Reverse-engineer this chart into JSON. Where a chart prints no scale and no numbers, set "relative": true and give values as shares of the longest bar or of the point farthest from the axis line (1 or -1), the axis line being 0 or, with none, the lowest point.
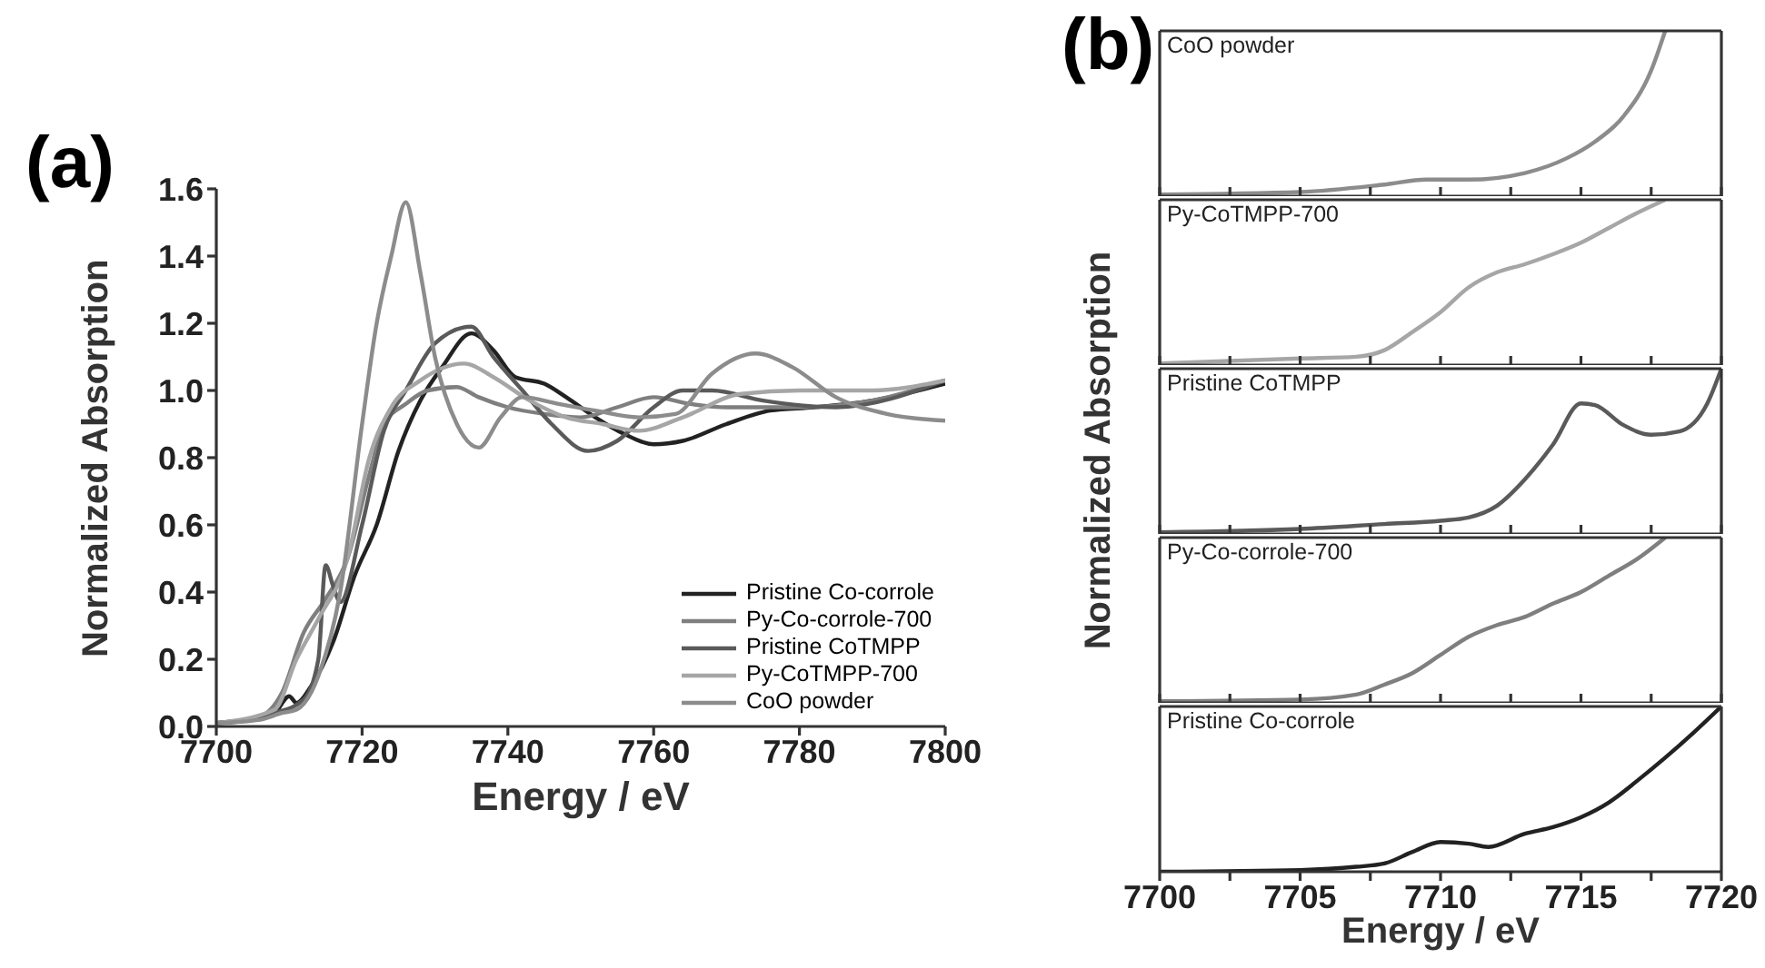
{
  "chart_data": [
    {
      "type": "line",
      "title": "(a)",
      "xlabel": "Energy / eV",
      "ylabel": "Normalized Absorption",
      "xlim": [
        7700,
        7800
      ],
      "xticks": [
        7700,
        7720,
        7740,
        7760,
        7780,
        7800
      ],
      "ylim": [
        0,
        1.6
      ],
      "yticks": [
        {
          "value": 0,
          "label": "0.0"
        },
        0.2,
        0.4,
        0.6,
        0.8,
        {
          "value": 1,
          "label": "1.0"
        },
        1.2,
        1.4,
        1.6
      ],
      "legend": "bottom right",
      "marker": "none",
      "line_style": "solid",
      "series": [
        {
          "name": "Pristine Co-corrole",
          "color": "#222222",
          "x": [
            7700,
            7705,
            7708,
            7710,
            7711,
            7713,
            7716,
            7719,
            7722,
            7725,
            7728,
            7731,
            7735,
            7738,
            7741,
            7745,
            7748,
            7752,
            7756,
            7760,
            7764,
            7770,
            7776,
            7782,
            7790,
            7800
          ],
          "values": [
            0.01,
            0.02,
            0.04,
            0.09,
            0.07,
            0.12,
            0.25,
            0.45,
            0.6,
            0.82,
            0.97,
            1.07,
            1.17,
            1.12,
            1.04,
            1.02,
            0.98,
            0.92,
            0.87,
            0.84,
            0.85,
            0.9,
            0.94,
            0.95,
            0.97,
            1.02
          ]
        },
        {
          "name": "Py-Co-corrole-700",
          "color": "#7f7f7f",
          "x": [
            7700,
            7706,
            7709,
            7712,
            7715,
            7718,
            7721,
            7723,
            7726,
            7729,
            7733,
            7736,
            7740,
            7745,
            7750,
            7755,
            7760,
            7765,
            7770,
            7780,
            7790,
            7800
          ],
          "values": [
            0.01,
            0.03,
            0.1,
            0.28,
            0.38,
            0.5,
            0.75,
            0.9,
            0.96,
            1.0,
            1.01,
            0.98,
            0.95,
            0.93,
            0.92,
            0.95,
            0.98,
            0.96,
            0.95,
            0.95,
            0.97,
            1.03
          ]
        },
        {
          "name": "Pristine CoTMPP",
          "color": "#5a5a5a",
          "x": [
            7700,
            7708,
            7712,
            7714,
            7715,
            7716,
            7717,
            7720,
            7723,
            7726,
            7730,
            7735,
            7738,
            7742,
            7746,
            7751,
            7755,
            7760,
            7764,
            7768,
            7775,
            7785,
            7800
          ],
          "values": [
            0.01,
            0.04,
            0.08,
            0.2,
            0.48,
            0.42,
            0.37,
            0.6,
            0.88,
            1.0,
            1.14,
            1.19,
            1.1,
            1.0,
            0.9,
            0.82,
            0.85,
            0.95,
            1.0,
            1.0,
            0.97,
            0.95,
            1.03
          ]
        },
        {
          "name": "Py-CoTMPP-700",
          "color": "#a6a6a6",
          "x": [
            7700,
            7708,
            7711,
            7714,
            7718,
            7721,
            7724,
            7728,
            7734,
            7738,
            7743,
            7748,
            7753,
            7758,
            7764,
            7772,
            7780,
            7790,
            7800
          ],
          "values": [
            0.01,
            0.05,
            0.2,
            0.32,
            0.5,
            0.8,
            0.95,
            1.03,
            1.08,
            1.04,
            0.97,
            0.92,
            0.9,
            0.88,
            0.92,
            0.99,
            1.0,
            1.0,
            1.03
          ]
        },
        {
          "name": "CoO powder",
          "color": "#8c8c8c",
          "x": [
            7700,
            7706,
            7709,
            7711,
            7714,
            7717,
            7720,
            7722,
            7724,
            7726,
            7728,
            7730,
            7733,
            7736,
            7739,
            7742,
            7747,
            7752,
            7758,
            7763,
            7768,
            7774,
            7779,
            7785,
            7792,
            7800
          ],
          "values": [
            0.01,
            0.02,
            0.04,
            0.05,
            0.15,
            0.4,
            0.9,
            1.2,
            1.4,
            1.56,
            1.35,
            1.1,
            0.9,
            0.83,
            0.92,
            0.98,
            0.96,
            0.94,
            0.92,
            0.93,
            1.05,
            1.11,
            1.07,
            0.98,
            0.93,
            0.91
          ]
        }
      ]
    },
    {
      "type": "line",
      "title": "(b)",
      "relative": true,
      "tick_labels": false,
      "legend": false,
      "marker": "none",
      "xlim": [
        7700,
        7720
      ],
      "xticks": [
        7700,
        {
          "value": 7702.5,
          "label": null
        },
        7705,
        {
          "value": 7707.5,
          "label": null
        },
        7710,
        {
          "value": 7712.5,
          "label": null
        },
        7715,
        {
          "value": 7717.5,
          "label": null
        },
        7720
      ],
      "series": [
        {
          "name": "CoO powder",
          "color": "#8c8c8c",
          "x": [
            7700,
            7705,
            7708,
            7709.5,
            7711,
            7713,
            7714.5,
            7715.5,
            7716.5,
            7717.5,
            7718
          ],
          "values": [
            0.01,
            0.025,
            0.07,
            0.1,
            0.1,
            0.14,
            0.23,
            0.33,
            0.48,
            0.76,
            1
          ]
        }
      ]
    },
    {
      "type": "line",
      "relative": true,
      "tick_labels": false,
      "legend": false,
      "marker": "none",
      "xlim": [
        7700,
        7720
      ],
      "xticks": [
        7700,
        {
          "value": 7702.5,
          "label": null
        },
        7705,
        {
          "value": 7707.5,
          "label": null
        },
        7710,
        {
          "value": 7712.5,
          "label": null
        },
        7715,
        {
          "value": 7717.5,
          "label": null
        },
        7720
      ],
      "series": [
        {
          "name": "Py-CoTMPP-700",
          "color": "#a6a6a6",
          "x": [
            7700,
            7705,
            7707,
            7708,
            7709,
            7710,
            7711,
            7712,
            7713,
            7714,
            7715,
            7716,
            7717,
            7718
          ],
          "values": [
            0.01,
            0.04,
            0.05,
            0.09,
            0.2,
            0.32,
            0.47,
            0.56,
            0.61,
            0.67,
            0.74,
            0.83,
            0.92,
            1
          ]
        }
      ]
    },
    {
      "type": "line",
      "relative": true,
      "tick_labels": false,
      "legend": false,
      "marker": "none",
      "ylabel": "Normalized Absorption",
      "xlim": [
        7700,
        7720
      ],
      "xticks": [
        7700,
        {
          "value": 7702.5,
          "label": null
        },
        7705,
        {
          "value": 7707.5,
          "label": null
        },
        7710,
        {
          "value": 7712.5,
          "label": null
        },
        7715,
        {
          "value": 7717.5,
          "label": null
        },
        7720
      ],
      "series": [
        {
          "name": "Pristine CoTMPP",
          "color": "#5a5a5a",
          "x": [
            7700,
            7705,
            7708,
            7710,
            7711,
            7712,
            7713,
            7714,
            7715,
            7715.5,
            7716.5,
            7717.5,
            7718.5,
            7719.5,
            7720
          ],
          "values": [
            0.01,
            0.03,
            0.06,
            0.08,
            0.1,
            0.17,
            0.33,
            0.54,
            0.79,
            0.78,
            0.66,
            0.6,
            0.62,
            0.79,
            1
          ]
        }
      ]
    },
    {
      "type": "line",
      "relative": true,
      "tick_labels": false,
      "legend": false,
      "marker": "none",
      "xlim": [
        7700,
        7720
      ],
      "xticks": [
        7700,
        {
          "value": 7702.5,
          "label": null
        },
        7705,
        {
          "value": 7707.5,
          "label": null
        },
        7710,
        {
          "value": 7712.5,
          "label": null
        },
        7715,
        {
          "value": 7717.5,
          "label": null
        },
        7720
      ],
      "series": [
        {
          "name": "Py-Co-corrole-700",
          "color": "#7f7f7f",
          "x": [
            7700,
            7705,
            7707,
            7708,
            7709,
            7710,
            7711,
            7712,
            7713,
            7714,
            7715,
            7716,
            7717,
            7718
          ],
          "values": [
            0.01,
            0.02,
            0.05,
            0.11,
            0.18,
            0.29,
            0.4,
            0.47,
            0.52,
            0.6,
            0.67,
            0.77,
            0.87,
            1
          ]
        }
      ]
    },
    {
      "type": "line",
      "relative": true,
      "tick_labels": "x",
      "legend": false,
      "marker": "none",
      "xlabel": "Energy / eV",
      "xlim": [
        7700,
        7720
      ],
      "xticks": [
        7700,
        {
          "value": 7702.5,
          "label": null
        },
        7705,
        {
          "value": 7707.5,
          "label": null
        },
        7710,
        {
          "value": 7712.5,
          "label": null
        },
        7715,
        {
          "value": 7717.5,
          "label": null
        },
        7720
      ],
      "series": [
        {
          "name": "Pristine Co-corrole",
          "color": "#222222",
          "x": [
            7700,
            7705,
            7707,
            7708,
            7709,
            7710,
            7711,
            7711.7,
            7713,
            7714,
            7715,
            7716,
            7717,
            7718,
            7719,
            7720
          ],
          "values": [
            0,
            0.01,
            0.03,
            0.05,
            0.12,
            0.18,
            0.17,
            0.15,
            0.23,
            0.27,
            0.33,
            0.42,
            0.55,
            0.69,
            0.84,
            1
          ]
        }
      ]
    }
  ]
}
